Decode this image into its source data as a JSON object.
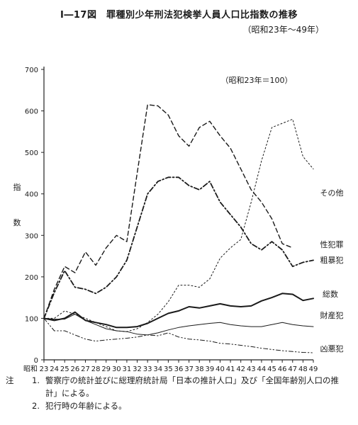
{
  "title": "Ⅰ―17図　罪種別少年刑法犯検挙人員人口比指数の推移",
  "subtitle": "（昭和23年～49年）",
  "chart_data": {
    "type": "line",
    "base_note": "（昭和23年＝100）",
    "ylabel": [
      "指",
      "数"
    ],
    "xlabel_prefix": "昭和",
    "ylim": [
      0,
      700
    ],
    "yticks": [
      0,
      100,
      200,
      300,
      400,
      500,
      600,
      700
    ],
    "x": [
      23,
      24,
      25,
      26,
      27,
      28,
      29,
      30,
      31,
      32,
      33,
      34,
      35,
      36,
      37,
      38,
      39,
      40,
      41,
      42,
      43,
      44,
      45,
      46,
      47,
      48,
      49
    ],
    "series": [
      {
        "name": "その他",
        "style": "dash",
        "values": [
          100,
          170,
          225,
          210,
          260,
          228,
          270,
          300,
          285,
          450,
          615,
          612,
          590,
          540,
          515,
          560,
          575,
          540,
          510,
          460,
          410,
          380,
          340,
          280,
          270,
          null,
          null
        ]
      },
      {
        "name": "性犯罪",
        "style": "dashdot",
        "values": [
          100,
          162,
          215,
          175,
          170,
          160,
          175,
          200,
          240,
          320,
          400,
          430,
          440,
          440,
          420,
          410,
          430,
          380,
          350,
          320,
          280,
          265,
          285,
          265,
          225,
          235,
          240
        ]
      },
      {
        "name": "粗暴犯",
        "style": "dot",
        "values": [
          100,
          100,
          118,
          110,
          100,
          90,
          80,
          70,
          68,
          75,
          90,
          110,
          140,
          180,
          180,
          175,
          195,
          245,
          270,
          290,
          380,
          480,
          560,
          570,
          580,
          490,
          460
        ]
      },
      {
        "name": "総数",
        "style": "solid",
        "values": [
          100,
          95,
          100,
          115,
          95,
          90,
          85,
          78,
          78,
          80,
          88,
          100,
          112,
          118,
          128,
          125,
          130,
          135,
          130,
          128,
          130,
          142,
          150,
          160,
          158,
          143,
          148
        ]
      },
      {
        "name": "財産犯",
        "style": "thin",
        "values": [
          100,
          98,
          98,
          110,
          95,
          85,
          75,
          70,
          68,
          62,
          60,
          65,
          72,
          78,
          82,
          85,
          88,
          90,
          85,
          82,
          80,
          80,
          85,
          90,
          85,
          82,
          80
        ]
      },
      {
        "name": "凶悪犯",
        "style": "dashdotdot",
        "values": [
          100,
          70,
          70,
          60,
          50,
          45,
          48,
          50,
          52,
          55,
          60,
          58,
          65,
          55,
          50,
          48,
          45,
          40,
          38,
          35,
          32,
          28,
          25,
          22,
          20,
          18,
          17
        ]
      }
    ]
  },
  "notes": {
    "label": "注",
    "items": [
      {
        "num": "1.",
        "text": "警察庁の統計並びに総理府統計局「日本の推計人口」及び「全国年齢別人口の推計」による。"
      },
      {
        "num": "2.",
        "text": "犯行時の年齢による。"
      }
    ]
  }
}
